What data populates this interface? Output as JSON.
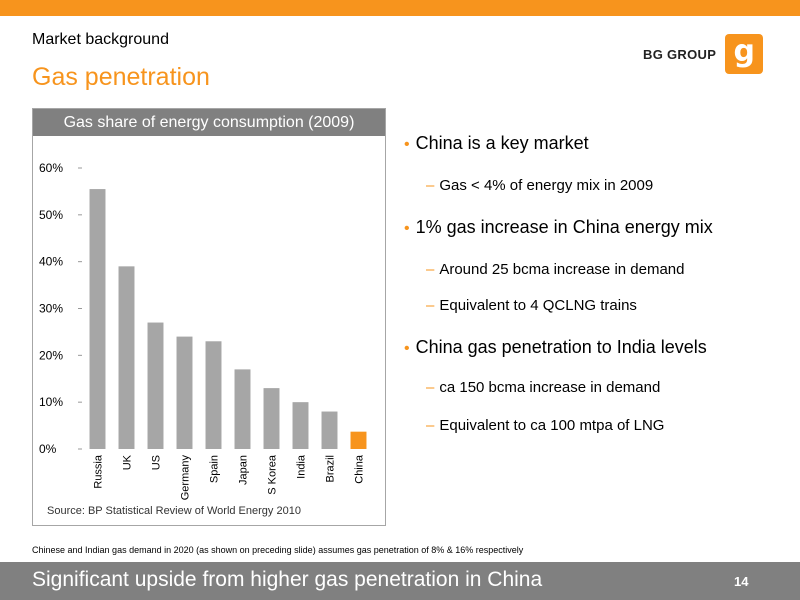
{
  "header": {
    "section_label": "Market background",
    "title": "Gas penetration",
    "logo_text": "BG GROUP",
    "logo_mark": "g",
    "accent_color": "#f7941d"
  },
  "chart_data": {
    "type": "bar",
    "title": "Gas share of energy consumption (2009)",
    "categories": [
      "Russia",
      "UK",
      "US",
      "Germany",
      "Spain",
      "Japan",
      "S Korea",
      "India",
      "Brazil",
      "China"
    ],
    "values": [
      55.5,
      39,
      27,
      24,
      23,
      17,
      13,
      10,
      8,
      3.7
    ],
    "highlight_index": 9,
    "bar_color": "#a6a6a6",
    "highlight_color": "#f7941d",
    "ylim": [
      0,
      60
    ],
    "yticks": [
      "0%",
      "10%",
      "20%",
      "30%",
      "40%",
      "50%",
      "60%"
    ],
    "xlabel": "",
    "ylabel": "",
    "grid": false,
    "source": "Source: BP Statistical Review of World Energy 2010"
  },
  "bullets": [
    {
      "text": "China is a key market",
      "subs": [
        "Gas < 4% of energy mix in 2009"
      ]
    },
    {
      "text": "1% gas increase in China energy mix",
      "subs": [
        "Around 25 bcma increase in demand",
        "Equivalent to 4 QCLNG trains"
      ]
    },
    {
      "text": "China gas penetration to India levels",
      "subs": [
        "ca 150 bcma increase in demand",
        "Equivalent to ca 100 mtpa of LNG"
      ]
    }
  ],
  "footnote": "Chinese and Indian gas demand in 2020 (as shown on preceding slide) assumes gas penetration of 8% & 16% respectively",
  "footer": {
    "title": "Significant upside from higher gas penetration in China",
    "page_number": "14"
  }
}
